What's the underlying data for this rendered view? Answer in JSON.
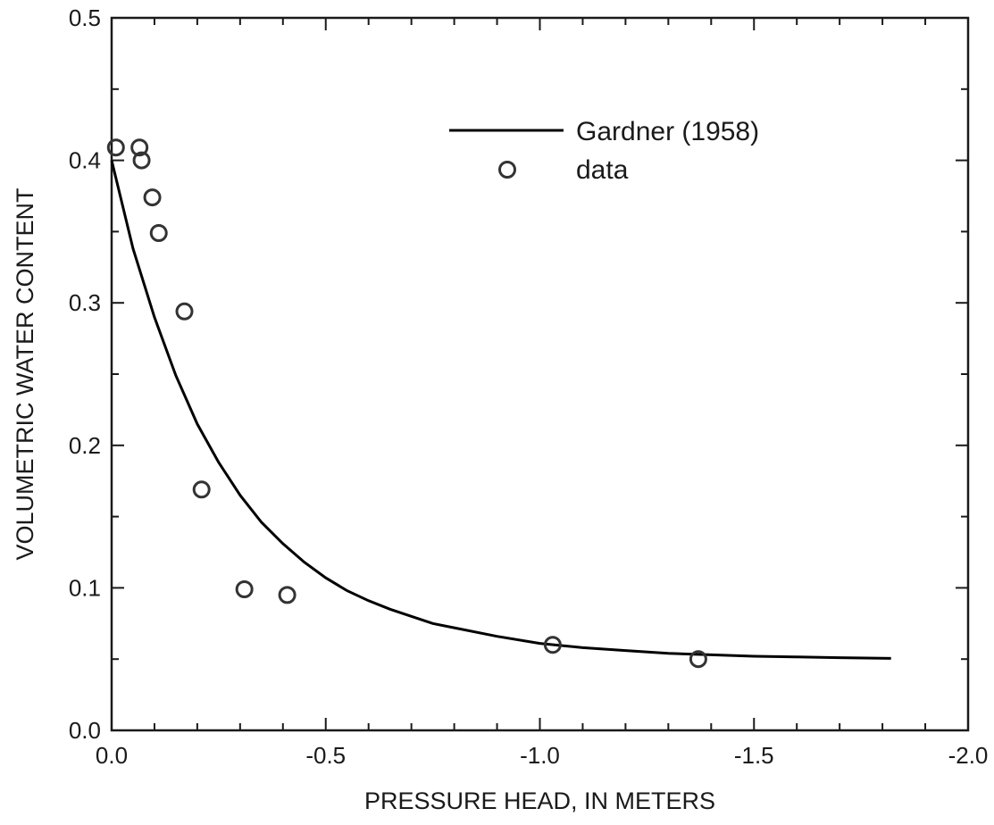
{
  "chart_data": {
    "type": "scatter",
    "xlabel": "PRESSURE HEAD, IN METERS",
    "ylabel": "VOLUMETRIC WATER CONTENT",
    "xlim": [
      0.0,
      -2.0
    ],
    "ylim": [
      0.0,
      0.5
    ],
    "x_ticks": [
      0.0,
      -0.5,
      -1.0,
      -1.5,
      -2.0
    ],
    "x_tick_labels": [
      "0.0",
      "-0.5",
      "-1.0",
      "-1.5",
      "-2.0"
    ],
    "y_ticks": [
      0.0,
      0.1,
      0.2,
      0.3,
      0.4,
      0.5
    ],
    "y_tick_labels": [
      "0.0",
      "0.1",
      "0.2",
      "0.3",
      "0.4",
      "0.5"
    ],
    "grid": false,
    "legend_position": "top-right",
    "series": [
      {
        "name": "Gardner (1958)",
        "style": "line",
        "color": "#000000",
        "x": [
          0.0,
          -0.05,
          -0.1,
          -0.15,
          -0.2,
          -0.25,
          -0.3,
          -0.35,
          -0.4,
          -0.45,
          -0.5,
          -0.55,
          -0.6,
          -0.65,
          -0.7,
          -0.75,
          -0.8,
          -0.9,
          -1.0,
          -1.1,
          -1.2,
          -1.3,
          -1.4,
          -1.5,
          -1.6,
          -1.7,
          -1.82
        ],
        "y": [
          0.4,
          0.338,
          0.29,
          0.249,
          0.215,
          0.188,
          0.165,
          0.146,
          0.131,
          0.118,
          0.107,
          0.098,
          0.091,
          0.085,
          0.08,
          0.075,
          0.072,
          0.066,
          0.061,
          0.058,
          0.056,
          0.054,
          0.053,
          0.052,
          0.0515,
          0.051,
          0.0505
        ]
      },
      {
        "name": "data",
        "style": "marker",
        "marker": "open-circle",
        "color": "#333333",
        "x": [
          -0.01,
          -0.065,
          -0.07,
          -0.095,
          -0.11,
          -0.17,
          -0.21,
          -0.31,
          -0.41,
          -1.03,
          -1.37
        ],
        "y": [
          0.409,
          0.409,
          0.4,
          0.374,
          0.349,
          0.294,
          0.169,
          0.099,
          0.095,
          0.06,
          0.05
        ]
      }
    ]
  }
}
